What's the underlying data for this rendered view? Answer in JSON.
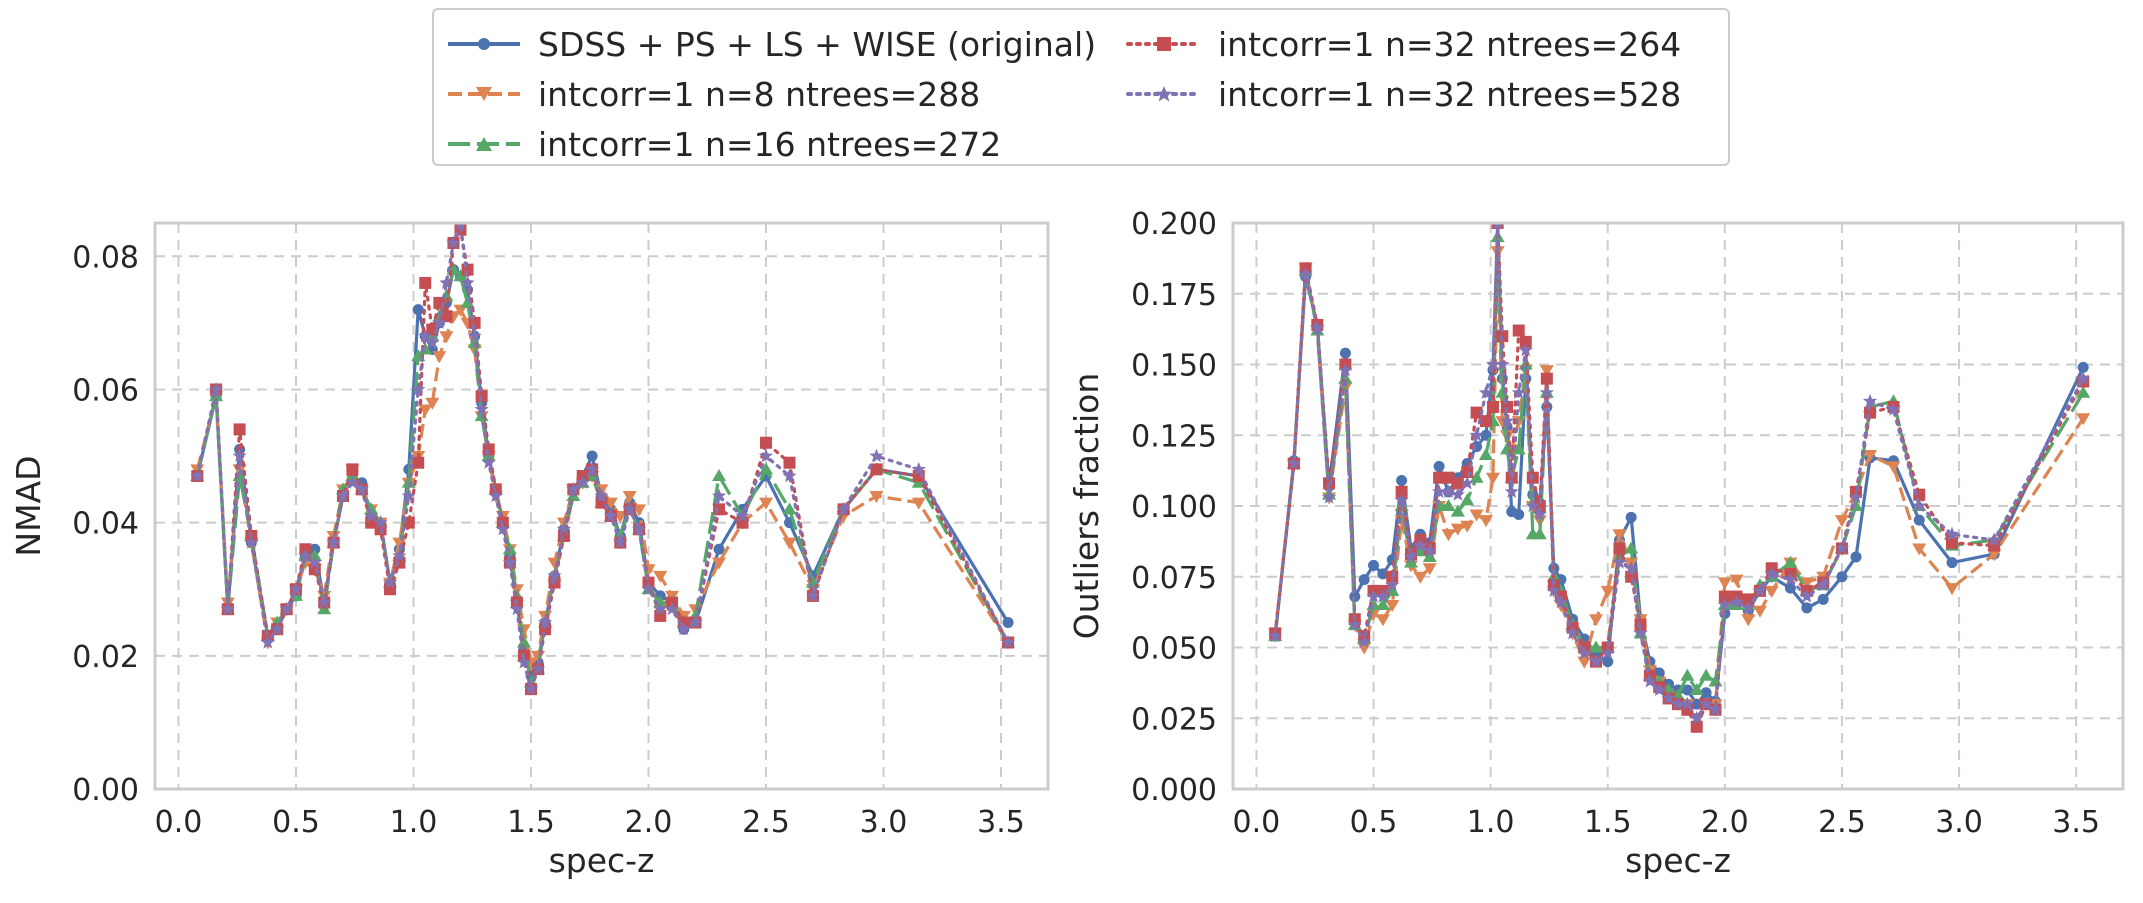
{
  "chart_data": [
    {
      "type": "line",
      "title": "",
      "xlabel": "spec-z",
      "ylabel": "NMAD",
      "xlim": [
        -0.1,
        3.7
      ],
      "ylim": [
        0,
        0.085
      ],
      "xticks": [
        0.0,
        0.5,
        1.0,
        1.5,
        2.0,
        2.5,
        3.0,
        3.5
      ],
      "xtick_labels": [
        "0.0",
        "0.5",
        "1.0",
        "1.5",
        "2.0",
        "2.5",
        "3.0",
        "3.5"
      ],
      "yticks": [
        0.0,
        0.02,
        0.04,
        0.06,
        0.08
      ],
      "ytick_labels": [
        "0.00",
        "0.02",
        "0.04",
        "0.06",
        "0.08"
      ],
      "grid": true,
      "x": [
        0.08,
        0.16,
        0.21,
        0.26,
        0.31,
        0.38,
        0.42,
        0.46,
        0.5,
        0.54,
        0.58,
        0.62,
        0.66,
        0.7,
        0.74,
        0.78,
        0.82,
        0.86,
        0.9,
        0.94,
        0.98,
        1.02,
        1.05,
        1.08,
        1.11,
        1.14,
        1.17,
        1.2,
        1.23,
        1.26,
        1.29,
        1.32,
        1.35,
        1.38,
        1.41,
        1.44,
        1.47,
        1.5,
        1.53,
        1.56,
        1.6,
        1.64,
        1.68,
        1.72,
        1.76,
        1.8,
        1.84,
        1.88,
        1.92,
        1.96,
        2.0,
        2.05,
        2.1,
        2.15,
        2.2,
        2.3,
        2.4,
        2.5,
        2.6,
        2.7,
        2.83,
        2.97,
        3.15,
        3.53
      ],
      "series": [
        {
          "name": "SDSS + PS + LS + WISE (original)",
          "color": "#4c72b0",
          "dash": "solid",
          "marker": "circle",
          "values": [
            0.047,
            0.059,
            0.027,
            0.051,
            0.037,
            0.023,
            0.024,
            0.027,
            0.029,
            0.035,
            0.036,
            0.028,
            0.037,
            0.044,
            0.047,
            0.046,
            0.041,
            0.04,
            0.031,
            0.036,
            0.048,
            0.072,
            0.068,
            0.066,
            0.07,
            0.073,
            0.078,
            0.077,
            0.075,
            0.068,
            0.058,
            0.05,
            0.045,
            0.04,
            0.035,
            0.028,
            0.021,
            0.017,
            0.019,
            0.025,
            0.032,
            0.039,
            0.045,
            0.047,
            0.05,
            0.044,
            0.042,
            0.038,
            0.043,
            0.04,
            0.031,
            0.029,
            0.028,
            0.024,
            0.025,
            0.036,
            0.042,
            0.047,
            0.04,
            0.032,
            0.042,
            0.048,
            0.047,
            0.025
          ]
        },
        {
          "name": "intcorr=1 n=8 ntrees=288",
          "color": "#dd8452",
          "dash": "dashed",
          "marker": "triangle-down",
          "values": [
            0.048,
            0.059,
            0.028,
            0.048,
            0.037,
            0.022,
            0.025,
            0.027,
            0.03,
            0.034,
            0.033,
            0.029,
            0.038,
            0.045,
            0.048,
            0.045,
            0.042,
            0.04,
            0.031,
            0.037,
            0.046,
            0.05,
            0.057,
            0.058,
            0.065,
            0.068,
            0.071,
            0.072,
            0.07,
            0.066,
            0.056,
            0.05,
            0.044,
            0.041,
            0.036,
            0.03,
            0.024,
            0.019,
            0.02,
            0.026,
            0.034,
            0.04,
            0.045,
            0.046,
            0.047,
            0.045,
            0.043,
            0.041,
            0.044,
            0.042,
            0.033,
            0.032,
            0.029,
            0.026,
            0.027,
            0.034,
            0.04,
            0.043,
            0.037,
            0.03,
            0.041,
            0.044,
            0.043,
            0.022
          ]
        },
        {
          "name": "intcorr=1 n=16 ntrees=272",
          "color": "#55a868",
          "dash": "longdash",
          "marker": "triangle-up",
          "values": [
            0.047,
            0.059,
            0.027,
            0.047,
            0.038,
            0.023,
            0.025,
            0.027,
            0.029,
            0.035,
            0.035,
            0.027,
            0.037,
            0.045,
            0.047,
            0.045,
            0.042,
            0.04,
            0.031,
            0.035,
            0.046,
            0.065,
            0.066,
            0.068,
            0.071,
            0.074,
            0.078,
            0.077,
            0.073,
            0.067,
            0.056,
            0.05,
            0.045,
            0.04,
            0.036,
            0.029,
            0.022,
            0.016,
            0.018,
            0.025,
            0.032,
            0.038,
            0.044,
            0.046,
            0.047,
            0.043,
            0.041,
            0.038,
            0.042,
            0.039,
            0.03,
            0.028,
            0.028,
            0.025,
            0.026,
            0.047,
            0.041,
            0.048,
            0.042,
            0.031,
            0.042,
            0.048,
            0.046,
            0.022
          ]
        },
        {
          "name": "intcorr=1 n=32 ntrees=264",
          "color": "#c44e52",
          "dash": "dotted",
          "marker": "square",
          "values": [
            0.047,
            0.06,
            0.027,
            0.054,
            0.038,
            0.023,
            0.024,
            0.027,
            0.03,
            0.036,
            0.033,
            0.028,
            0.037,
            0.044,
            0.048,
            0.045,
            0.04,
            0.039,
            0.03,
            0.034,
            0.04,
            0.049,
            0.076,
            0.069,
            0.073,
            0.071,
            0.082,
            0.084,
            0.078,
            0.07,
            0.059,
            0.051,
            0.045,
            0.04,
            0.034,
            0.028,
            0.02,
            0.015,
            0.018,
            0.024,
            0.031,
            0.038,
            0.045,
            0.047,
            0.048,
            0.043,
            0.041,
            0.037,
            0.042,
            0.039,
            0.031,
            0.026,
            0.028,
            0.025,
            0.025,
            0.042,
            0.04,
            0.052,
            0.049,
            0.029,
            0.042,
            0.048,
            0.047,
            0.022
          ]
        },
        {
          "name": "intcorr=1 n=32 ntrees=528",
          "color": "#8172b3",
          "dash": "dotted",
          "marker": "star",
          "values": [
            0.047,
            0.06,
            0.027,
            0.05,
            0.037,
            0.022,
            0.024,
            0.027,
            0.03,
            0.035,
            0.034,
            0.028,
            0.037,
            0.044,
            0.046,
            0.045,
            0.041,
            0.04,
            0.031,
            0.035,
            0.044,
            0.06,
            0.068,
            0.067,
            0.07,
            0.076,
            0.082,
            0.085,
            0.076,
            0.068,
            0.057,
            0.049,
            0.044,
            0.039,
            0.034,
            0.027,
            0.019,
            0.015,
            0.018,
            0.025,
            0.032,
            0.039,
            0.045,
            0.046,
            0.048,
            0.044,
            0.041,
            0.037,
            0.042,
            0.039,
            0.03,
            0.027,
            0.027,
            0.024,
            0.025,
            0.044,
            0.041,
            0.05,
            0.047,
            0.029,
            0.042,
            0.05,
            0.048,
            0.022
          ]
        }
      ]
    },
    {
      "type": "line",
      "title": "",
      "xlabel": "spec-z",
      "ylabel": "Outliers fraction",
      "xlim": [
        -0.1,
        3.7
      ],
      "ylim": [
        0,
        0.2
      ],
      "xticks": [
        0.0,
        0.5,
        1.0,
        1.5,
        2.0,
        2.5,
        3.0,
        3.5
      ],
      "xtick_labels": [
        "0.0",
        "0.5",
        "1.0",
        "1.5",
        "2.0",
        "2.5",
        "3.0",
        "3.5"
      ],
      "yticks": [
        0.0,
        0.025,
        0.05,
        0.075,
        0.1,
        0.125,
        0.15,
        0.175,
        0.2
      ],
      "ytick_labels": [
        "0.000",
        "0.025",
        "0.050",
        "0.075",
        "0.100",
        "0.125",
        "0.150",
        "0.175",
        "0.200"
      ],
      "grid": true,
      "x": [
        0.08,
        0.16,
        0.21,
        0.26,
        0.31,
        0.38,
        0.42,
        0.46,
        0.5,
        0.54,
        0.58,
        0.62,
        0.66,
        0.7,
        0.74,
        0.78,
        0.82,
        0.86,
        0.9,
        0.94,
        0.98,
        1.01,
        1.03,
        1.05,
        1.07,
        1.09,
        1.12,
        1.15,
        1.18,
        1.21,
        1.24,
        1.27,
        1.3,
        1.35,
        1.4,
        1.45,
        1.5,
        1.55,
        1.6,
        1.64,
        1.68,
        1.72,
        1.76,
        1.8,
        1.84,
        1.88,
        1.92,
        1.96,
        2.0,
        2.05,
        2.1,
        2.15,
        2.2,
        2.28,
        2.35,
        2.42,
        2.5,
        2.56,
        2.62,
        2.72,
        2.83,
        2.97,
        3.15,
        3.53
      ],
      "series": [
        {
          "name": "SDSS + PS + LS + WISE (original)",
          "color": "#4c72b0",
          "dash": "solid",
          "marker": "circle",
          "values": [
            0.054,
            0.116,
            0.181,
            0.164,
            0.107,
            0.154,
            0.068,
            0.074,
            0.079,
            0.076,
            0.081,
            0.109,
            0.085,
            0.09,
            0.087,
            0.114,
            0.105,
            0.11,
            0.115,
            0.121,
            0.125,
            0.148,
            0.2,
            0.145,
            0.128,
            0.098,
            0.097,
            0.145,
            0.104,
            0.101,
            0.135,
            0.078,
            0.074,
            0.06,
            0.053,
            0.048,
            0.045,
            0.088,
            0.096,
            0.06,
            0.045,
            0.041,
            0.037,
            0.035,
            0.035,
            0.03,
            0.034,
            0.031,
            0.062,
            0.068,
            0.063,
            0.07,
            0.075,
            0.071,
            0.064,
            0.067,
            0.075,
            0.082,
            0.117,
            0.116,
            0.095,
            0.08,
            0.083,
            0.149
          ]
        },
        {
          "name": "intcorr=1 n=8 ntrees=288",
          "color": "#dd8452",
          "dash": "dashed",
          "marker": "triangle-down",
          "values": [
            0.055,
            0.115,
            0.184,
            0.162,
            0.103,
            0.142,
            0.058,
            0.05,
            0.062,
            0.06,
            0.065,
            0.095,
            0.079,
            0.075,
            0.078,
            0.1,
            0.09,
            0.092,
            0.093,
            0.097,
            0.095,
            0.11,
            0.19,
            0.13,
            0.125,
            0.12,
            0.13,
            0.148,
            0.1,
            0.095,
            0.148,
            0.07,
            0.065,
            0.055,
            0.045,
            0.06,
            0.07,
            0.09,
            0.08,
            0.06,
            0.042,
            0.038,
            0.033,
            0.03,
            0.03,
            0.025,
            0.03,
            0.03,
            0.073,
            0.074,
            0.06,
            0.063,
            0.07,
            0.08,
            0.073,
            0.075,
            0.095,
            0.105,
            0.118,
            0.114,
            0.085,
            0.071,
            0.083,
            0.131
          ]
        },
        {
          "name": "intcorr=1 n=16 ntrees=272",
          "color": "#55a868",
          "dash": "longdash",
          "marker": "triangle-up",
          "values": [
            0.054,
            0.115,
            0.183,
            0.162,
            0.104,
            0.145,
            0.058,
            0.053,
            0.065,
            0.065,
            0.07,
            0.1,
            0.08,
            0.084,
            0.082,
            0.1,
            0.1,
            0.098,
            0.102,
            0.11,
            0.118,
            0.13,
            0.195,
            0.14,
            0.12,
            0.11,
            0.12,
            0.15,
            0.09,
            0.09,
            0.14,
            0.075,
            0.07,
            0.058,
            0.05,
            0.05,
            0.05,
            0.082,
            0.085,
            0.055,
            0.04,
            0.038,
            0.035,
            0.033,
            0.04,
            0.035,
            0.04,
            0.038,
            0.065,
            0.065,
            0.065,
            0.072,
            0.075,
            0.08,
            0.07,
            0.072,
            0.085,
            0.1,
            0.135,
            0.137,
            0.1,
            0.086,
            0.088,
            0.14
          ]
        },
        {
          "name": "intcorr=1 n=32 ntrees=264",
          "color": "#c44e52",
          "dash": "dotted",
          "marker": "square",
          "values": [
            0.055,
            0.115,
            0.184,
            0.164,
            0.108,
            0.15,
            0.06,
            0.054,
            0.07,
            0.07,
            0.075,
            0.105,
            0.083,
            0.088,
            0.085,
            0.11,
            0.11,
            0.108,
            0.112,
            0.133,
            0.13,
            0.135,
            0.2,
            0.16,
            0.135,
            0.11,
            0.162,
            0.158,
            0.11,
            0.1,
            0.145,
            0.072,
            0.068,
            0.057,
            0.05,
            0.045,
            0.05,
            0.085,
            0.075,
            0.058,
            0.04,
            0.036,
            0.032,
            0.03,
            0.028,
            0.022,
            0.03,
            0.028,
            0.068,
            0.068,
            0.067,
            0.07,
            0.078,
            0.076,
            0.07,
            0.073,
            0.085,
            0.105,
            0.133,
            0.135,
            0.104,
            0.087,
            0.086,
            0.144
          ]
        },
        {
          "name": "intcorr=1 n=32 ntrees=528",
          "color": "#8172b3",
          "dash": "dotted",
          "marker": "star",
          "values": [
            0.054,
            0.115,
            0.182,
            0.163,
            0.103,
            0.148,
            0.058,
            0.052,
            0.068,
            0.068,
            0.072,
            0.102,
            0.082,
            0.086,
            0.084,
            0.105,
            0.105,
            0.104,
            0.108,
            0.125,
            0.14,
            0.15,
            0.2,
            0.15,
            0.13,
            0.105,
            0.14,
            0.155,
            0.1,
            0.097,
            0.14,
            0.07,
            0.066,
            0.055,
            0.048,
            0.045,
            0.048,
            0.08,
            0.078,
            0.055,
            0.038,
            0.035,
            0.032,
            0.03,
            0.03,
            0.025,
            0.03,
            0.028,
            0.065,
            0.066,
            0.064,
            0.07,
            0.076,
            0.074,
            0.068,
            0.072,
            0.085,
            0.103,
            0.137,
            0.134,
            0.1,
            0.09,
            0.088,
            0.145
          ]
        }
      ]
    }
  ]
}
